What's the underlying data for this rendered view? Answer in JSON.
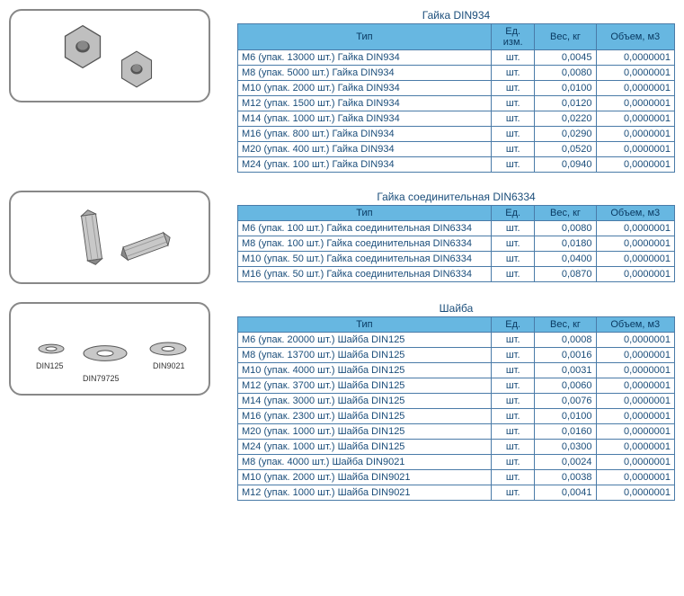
{
  "colors": {
    "header_bg": "#67b7e1",
    "border": "#4a7ba8",
    "text": "#1a4d7a"
  },
  "col_headers": {
    "type": "Тип",
    "unit_full": "Ед. изм.",
    "unit_short": "Ед.",
    "weight": "Вес, кг",
    "volume": "Объем, м3"
  },
  "sections": [
    {
      "title": "Гайка DIN934",
      "image": "hex-nut",
      "unit_header_key": "unit_full",
      "rows": [
        {
          "type": "М6  (упак. 13000 шт.) Гайка DIN934",
          "unit": "шт.",
          "weight": "0,0045",
          "vol": "0,0000001"
        },
        {
          "type": "М8  (упак. 5000 шт.) Гайка DIN934",
          "unit": "шт.",
          "weight": "0,0080",
          "vol": "0,0000001"
        },
        {
          "type": "М10  (упак. 2000 шт.) Гайка DIN934",
          "unit": "шт.",
          "weight": "0,0100",
          "vol": "0,0000001"
        },
        {
          "type": "М12  (упак. 1500 шт.) Гайка DIN934",
          "unit": "шт.",
          "weight": "0,0120",
          "vol": "0,0000001"
        },
        {
          "type": "М14  (упак. 1000 шт.) Гайка DIN934",
          "unit": "шт.",
          "weight": "0,0220",
          "vol": "0,0000001"
        },
        {
          "type": "М16  (упак. 800 шт.) Гайка DIN934",
          "unit": "шт.",
          "weight": "0,0290",
          "vol": "0,0000001"
        },
        {
          "type": "М20  (упак. 400 шт.) Гайка DIN934",
          "unit": "шт.",
          "weight": "0,0520",
          "vol": "0,0000001"
        },
        {
          "type": "М24  (упак. 100 шт.) Гайка DIN934",
          "unit": "шт.",
          "weight": "0,0940",
          "vol": "0,0000001"
        }
      ]
    },
    {
      "title": "Гайка соединительная DIN6334",
      "image": "long-nut",
      "unit_header_key": "unit_short",
      "rows": [
        {
          "type": "М6  (упак. 100 шт.) Гайка соединительная DIN6334",
          "unit": "шт.",
          "weight": "0,0080",
          "vol": "0,0000001"
        },
        {
          "type": "М8  (упак. 100 шт.) Гайка соединительная DIN6334",
          "unit": "шт.",
          "weight": "0,0180",
          "vol": "0,0000001"
        },
        {
          "type": "М10  (упак. 50 шт.) Гайка соединительная DIN6334",
          "unit": "шт.",
          "weight": "0,0400",
          "vol": "0,0000001"
        },
        {
          "type": "М16  (упак. 50 шт.) Гайка соединительная DIN6334",
          "unit": "шт.",
          "weight": "0,0870",
          "vol": "0,0000001"
        }
      ]
    },
    {
      "title": "Шайба",
      "image": "washers",
      "unit_header_key": "unit_short",
      "rows": [
        {
          "type": "М6  (упак. 20000 шт.) Шайба DIN125",
          "unit": "шт.",
          "weight": "0,0008",
          "vol": "0,0000001"
        },
        {
          "type": "М8  (упак. 13700 шт.) Шайба DIN125",
          "unit": "шт.",
          "weight": "0,0016",
          "vol": "0,0000001"
        },
        {
          "type": "М10  (упак. 4000 шт.) Шайба DIN125",
          "unit": "шт.",
          "weight": "0,0031",
          "vol": "0,0000001"
        },
        {
          "type": "М12  (упак. 3700 шт.) Шайба DIN125",
          "unit": "шт.",
          "weight": "0,0060",
          "vol": "0,0000001"
        },
        {
          "type": "М14  (упак. 3000 шт.) Шайба DIN125",
          "unit": "шт.",
          "weight": "0,0076",
          "vol": "0,0000001"
        },
        {
          "type": "М16  (упак. 2300 шт.) Шайба DIN125",
          "unit": "шт.",
          "weight": "0,0100",
          "vol": "0,0000001"
        },
        {
          "type": "М20  (упак. 1000 шт.) Шайба DIN125",
          "unit": "шт.",
          "weight": "0,0160",
          "vol": "0,0000001"
        },
        {
          "type": "М24  (упак. 1000 шт.) Шайба DIN125",
          "unit": "шт.",
          "weight": "0,0300",
          "vol": "0,0000001"
        },
        {
          "type": "М8  (упак. 4000 шт.) Шайба DIN9021",
          "unit": "шт.",
          "weight": "0,0024",
          "vol": "0,0000001"
        },
        {
          "type": "М10  (упак. 2000 шт.) Шайба DIN9021",
          "unit": "шт.",
          "weight": "0,0038",
          "vol": "0,0000001"
        },
        {
          "type": "М12  (упак. 1000 шт.) Шайба DIN9021",
          "unit": "шт.",
          "weight": "0,0041",
          "vol": "0,0000001"
        }
      ]
    }
  ],
  "washer_labels": [
    "DIN125",
    "DIN79725",
    "DIN9021"
  ]
}
